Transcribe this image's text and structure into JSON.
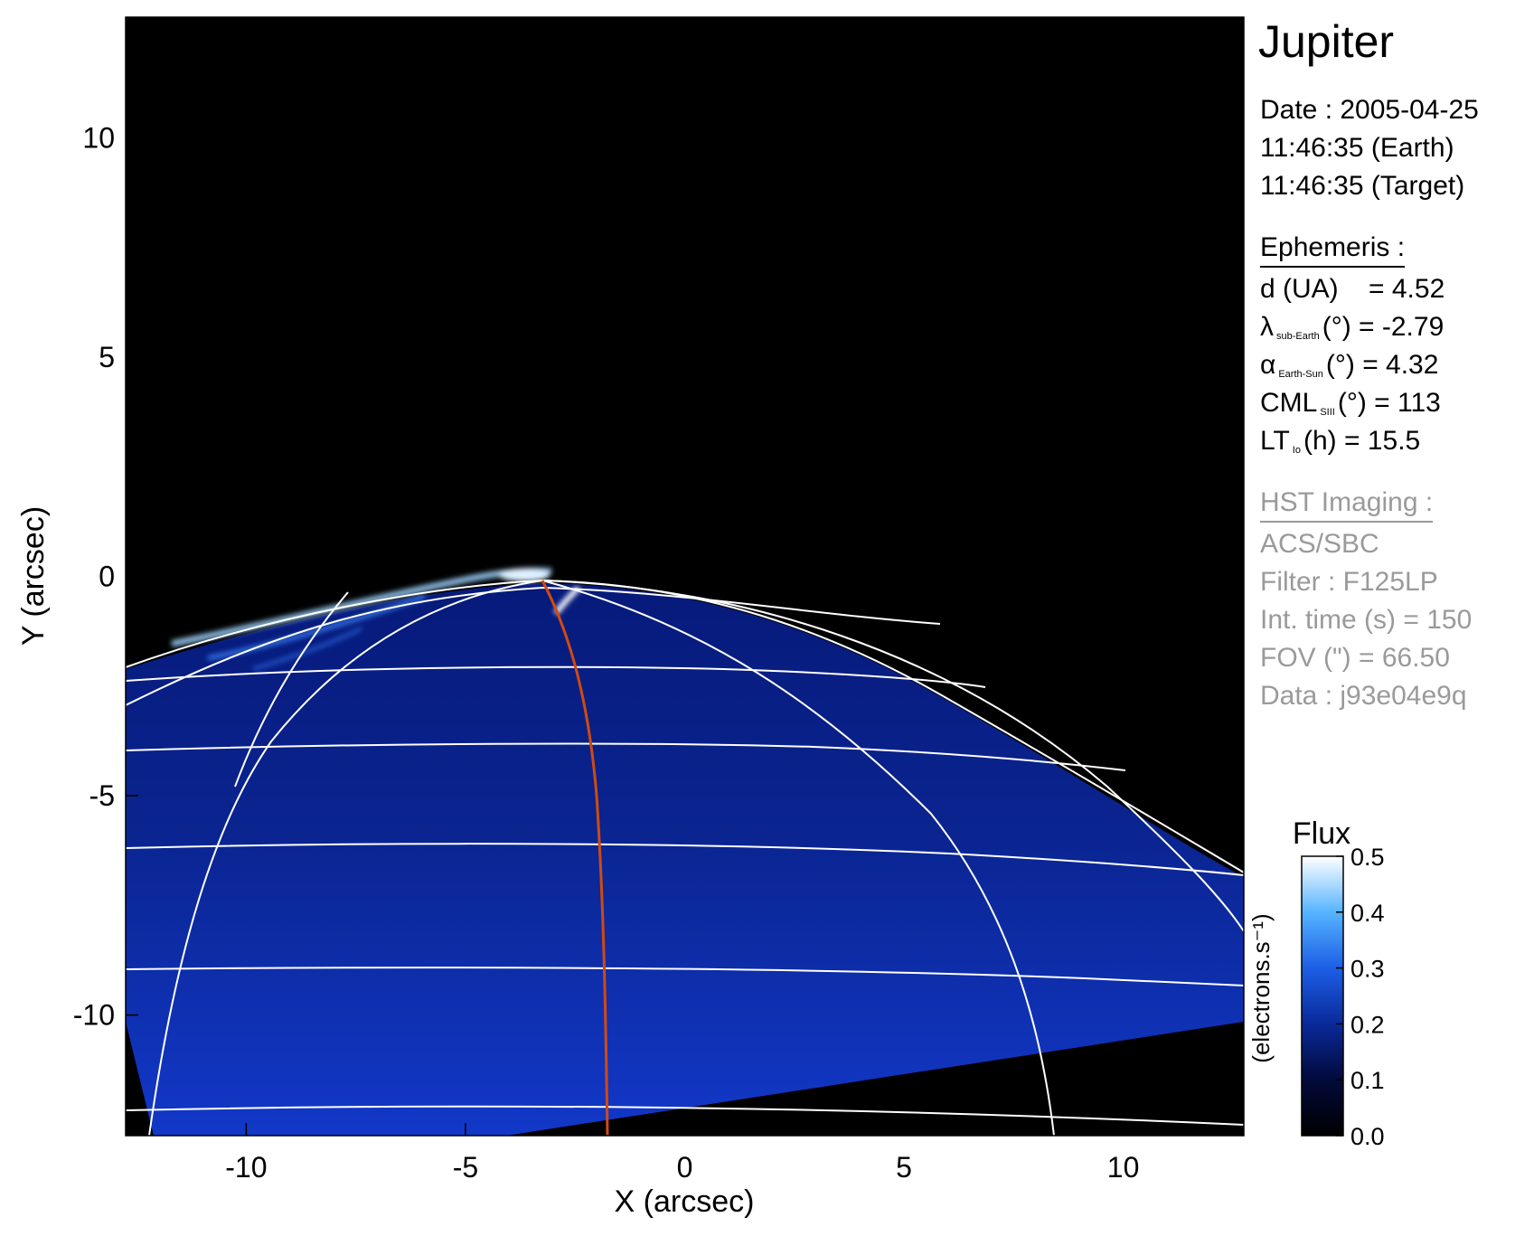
{
  "chart_data": {
    "type": "heatmap",
    "xlabel": "X (arcsec)",
    "ylabel": "Y (arcsec)",
    "xlim": [
      -12.75,
      12.75
    ],
    "ylim": [
      -12.75,
      12.75
    ],
    "x_ticks": [
      -10,
      -5,
      0,
      5,
      10
    ],
    "y_ticks": [
      10,
      5,
      0,
      -5,
      -10
    ],
    "grid": true,
    "colorbar": {
      "title": "Flux",
      "label": "(electrons.s⁻¹)",
      "range": [
        0.0,
        0.5
      ],
      "ticks": [
        "0.0",
        "0.1",
        "0.2",
        "0.3",
        "0.4",
        "0.5"
      ],
      "colormap": [
        "#000000",
        "#020a3a",
        "#0a2a9a",
        "#1c5ee6",
        "#56b4ff",
        "#ffffff"
      ]
    },
    "overlay_colors": {
      "grid": "#ffffff",
      "meridian": "#d24a10",
      "disk": "#0b2ab8",
      "background": "#000000"
    }
  },
  "panel": {
    "title": "Jupiter",
    "date": "Date : 2005-04-25",
    "time_earth": "11:46:35 (Earth)",
    "time_target": "11:46:35 (Target)",
    "ephemeris": {
      "header": "Ephemeris :",
      "distance": "d (UA)    = 4.52",
      "lambda_symbol": "λ",
      "lambda_sub": "sub-Earth",
      "lambda_rest": "(°) = -2.79",
      "alpha_symbol": "α",
      "alpha_sub": "Earth-Sun",
      "alpha_rest": "(°) = 4.32",
      "cml_symbol": "CML",
      "cml_sub": "SIII",
      "cml_rest": "(°) = 113",
      "lt_symbol": "LT",
      "lt_sub": "Io",
      "lt_rest": "(h) = 15.5"
    },
    "imaging": {
      "header": "HST Imaging :",
      "instrument": "ACS/SBC",
      "filter": "Filter : F125LP",
      "int_time": "Int. time (s) = 150",
      "fov": "FOV (\") = 66.50",
      "data": "Data : j93e04e9q"
    }
  }
}
